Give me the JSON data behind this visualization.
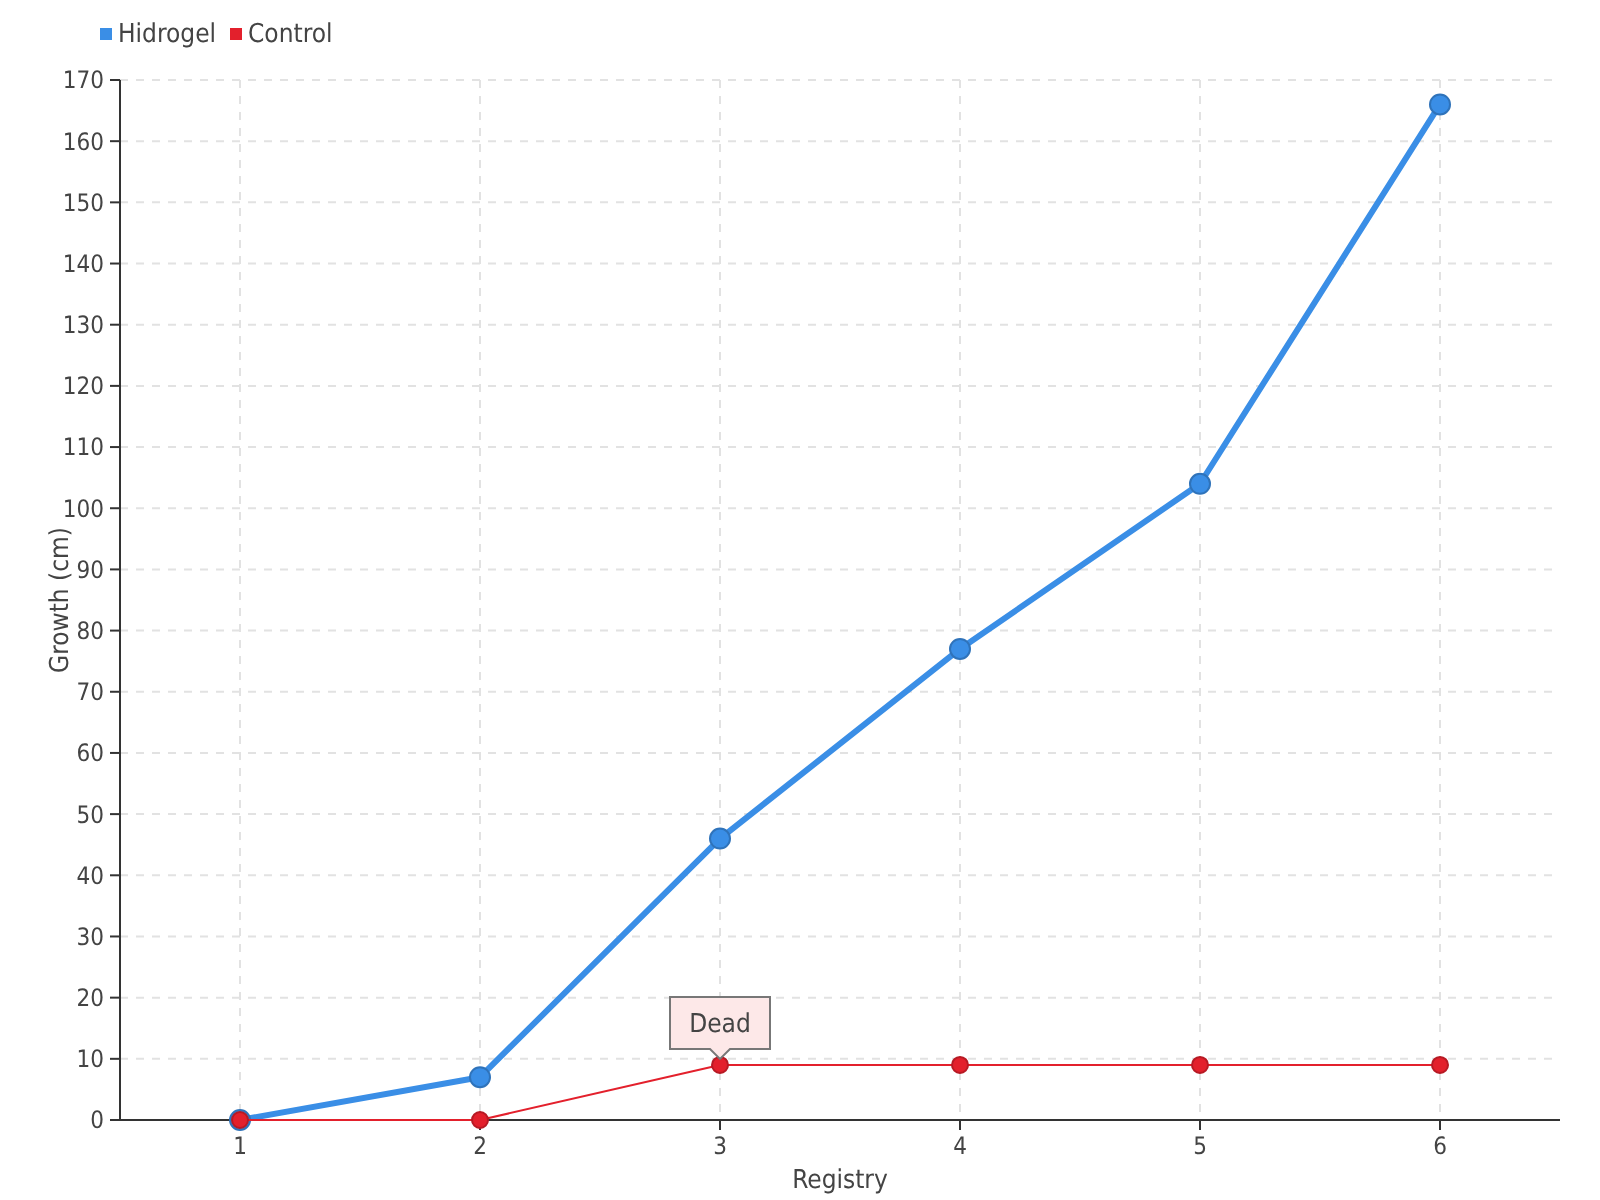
{
  "chart_data": {
    "type": "line",
    "xlabel": "Registry",
    "ylabel": "Growth (cm)",
    "categories": [
      "1",
      "2",
      "3",
      "4",
      "5",
      "6"
    ],
    "series": [
      {
        "name": "Hidrogel",
        "color": "#3a8ee6",
        "values": [
          0,
          7,
          46,
          77,
          104,
          166
        ]
      },
      {
        "name": "Control",
        "color": "#e3202c",
        "values": [
          0,
          0,
          9,
          9,
          9,
          9
        ]
      }
    ],
    "ylim": [
      0,
      170
    ],
    "yticks": [
      0,
      10,
      20,
      30,
      40,
      50,
      60,
      70,
      80,
      90,
      100,
      110,
      120,
      130,
      140,
      150,
      160,
      170
    ],
    "grid": true,
    "legend": "top left",
    "marker": "circle",
    "line_style": "solid",
    "annotations": [
      {
        "text": "Dead",
        "x": "3",
        "y": 9
      }
    ]
  }
}
